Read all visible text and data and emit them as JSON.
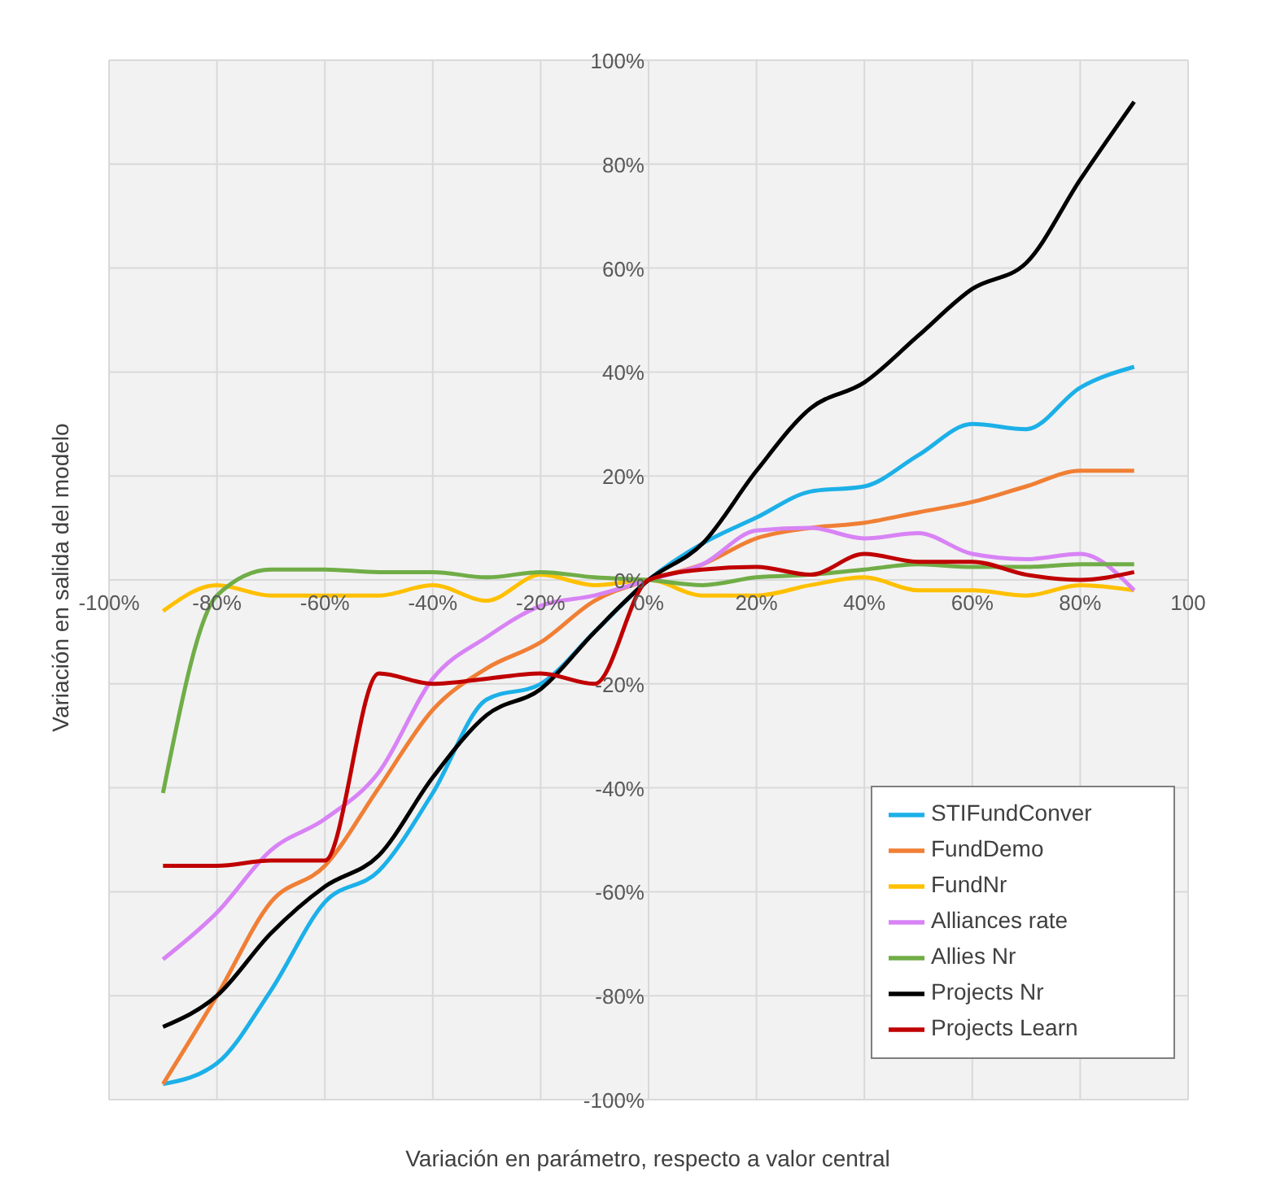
{
  "chart_data": {
    "type": "line",
    "xlabel": "Variación en parámetro, respecto a valor central",
    "ylabel": "Variación en salida del modelo",
    "x": [
      -90,
      -80,
      -70,
      -60,
      -50,
      -40,
      -30,
      -20,
      -10,
      0,
      10,
      20,
      30,
      40,
      50,
      60,
      70,
      80,
      90
    ],
    "series": [
      {
        "name": "STIFundConver",
        "color": "#1cb0e8",
        "values": [
          -97,
          -93,
          -79,
          -62,
          -56,
          -41,
          -23,
          -20,
          -10,
          0,
          7,
          12,
          17,
          18,
          24,
          30,
          29,
          37,
          41
        ]
      },
      {
        "name": "FundDemo",
        "color": "#f07f35",
        "values": [
          -97,
          -80,
          -62,
          -55,
          -40,
          -25,
          -17,
          -12,
          -4,
          0,
          3,
          8,
          10,
          11,
          13,
          15,
          18,
          21,
          21
        ]
      },
      {
        "name": "FundNr",
        "color": "#ffc000",
        "values": [
          -6,
          -1,
          -3,
          -3,
          -3,
          -1,
          -4,
          1,
          -1,
          0,
          -3,
          -3,
          -1,
          0.5,
          -2,
          -2,
          -3,
          -1,
          -2
        ]
      },
      {
        "name": "Alliances rate",
        "color": "#d883f5",
        "values": [
          -73,
          -64,
          -52,
          -46,
          -37,
          -19,
          -11,
          -5,
          -3,
          0,
          3,
          9.5,
          10,
          8,
          9,
          5,
          4,
          5,
          -2
        ]
      },
      {
        "name": "Allies Nr",
        "color": "#70ad47",
        "values": [
          -41,
          -3,
          2,
          2,
          1.5,
          1.5,
          0.5,
          1.5,
          0.5,
          0,
          -1,
          0.5,
          1,
          2,
          3,
          2.5,
          2.5,
          3,
          3
        ]
      },
      {
        "name": "Projects Nr",
        "color": "#000000",
        "values": [
          -86,
          -80,
          -68,
          -59,
          -53,
          -38,
          -26,
          -21,
          -10,
          0,
          7,
          21,
          33,
          38,
          47,
          56,
          61,
          77,
          92
        ]
      },
      {
        "name": "Projects Learn",
        "color": "#c00000",
        "values": [
          -55,
          -55,
          -54,
          -54,
          -18,
          -20,
          -19,
          -18,
          -20,
          0,
          2,
          2.5,
          1,
          5,
          3.5,
          3.5,
          1,
          0,
          1.5
        ]
      }
    ],
    "xlim": [
      -100,
      100
    ],
    "ylim": [
      -100,
      100
    ],
    "xticks": [
      {
        "value": -100,
        "label": "-100%"
      },
      {
        "value": -80,
        "label": "-80%"
      },
      {
        "value": -60,
        "label": "-60%"
      },
      {
        "value": -40,
        "label": "-40%"
      },
      {
        "value": -20,
        "label": "-20%"
      },
      {
        "value": 0,
        "label": "0%"
      },
      {
        "value": 20,
        "label": "20%"
      },
      {
        "value": 40,
        "label": "40%"
      },
      {
        "value": 60,
        "label": "60%"
      },
      {
        "value": 80,
        "label": "80%"
      },
      {
        "value": 100,
        "label": "100"
      }
    ],
    "yticks": [
      {
        "value": -100,
        "label": "-100%"
      },
      {
        "value": -80,
        "label": "-80%"
      },
      {
        "value": -60,
        "label": "-60%"
      },
      {
        "value": -40,
        "label": "-40%"
      },
      {
        "value": -20,
        "label": "-20%"
      },
      {
        "value": 0,
        "label": "0%"
      },
      {
        "value": 20,
        "label": "20%"
      },
      {
        "value": 40,
        "label": "40%"
      },
      {
        "value": 60,
        "label": "60%"
      },
      {
        "value": 80,
        "label": "80%"
      },
      {
        "value": 100,
        "label": "100%"
      }
    ],
    "grid": true,
    "legend": "bottom right",
    "marker": "none",
    "line_style": "solid"
  }
}
